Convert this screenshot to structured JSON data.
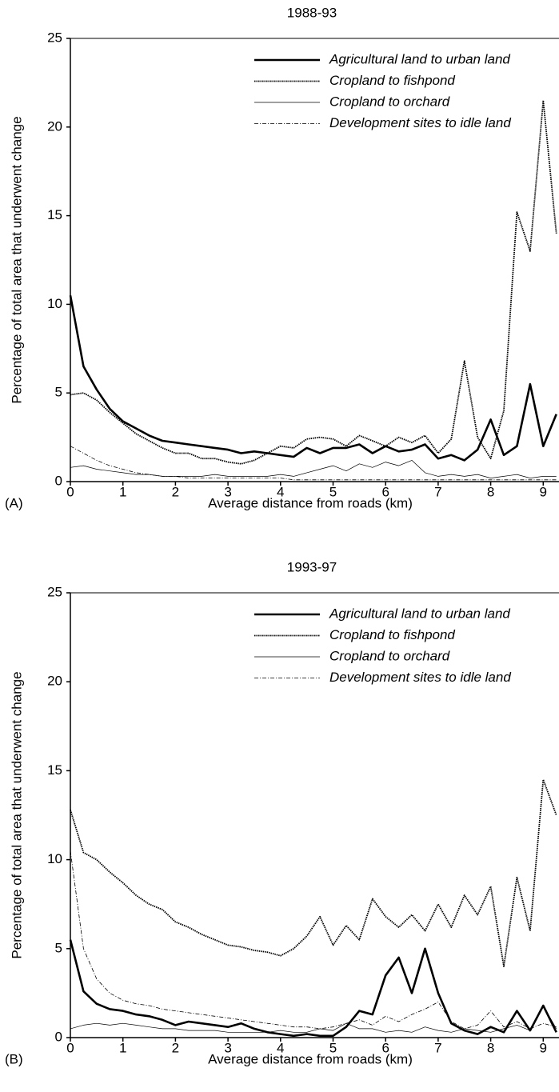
{
  "chart_data": [
    {
      "type": "line",
      "title": "1988-93",
      "panel_label": "(A)",
      "x_label": "Average distance from roads (km)",
      "y_label": "Percentage of total area that underwent change",
      "x": [
        0,
        0.25,
        0.5,
        0.75,
        1,
        1.25,
        1.5,
        1.75,
        2,
        2.25,
        2.5,
        2.75,
        3,
        3.25,
        3.5,
        3.75,
        4,
        4.25,
        4.5,
        4.75,
        5,
        5.25,
        5.5,
        5.75,
        6,
        6.25,
        6.5,
        6.75,
        7,
        7.25,
        7.5,
        7.75,
        8,
        8.25,
        8.5,
        8.75,
        9,
        9.25
      ],
      "xlim": [
        0,
        9.3
      ],
      "xticks": [
        0,
        1,
        2,
        3,
        4,
        5,
        6,
        7,
        8,
        9
      ],
      "ylim": [
        0,
        25
      ],
      "yticks": [
        0,
        5,
        10,
        15,
        20,
        25
      ],
      "series": [
        {
          "name": "Agricultural land to urban land",
          "color": "#000000",
          "dash": "solid",
          "width": 2.6,
          "values": [
            10.5,
            6.5,
            5.2,
            4.1,
            3.4,
            3.0,
            2.6,
            2.3,
            2.2,
            2.1,
            2.0,
            1.9,
            1.8,
            1.6,
            1.7,
            1.6,
            1.5,
            1.4,
            1.9,
            1.6,
            1.9,
            1.9,
            2.1,
            1.6,
            2.0,
            1.7,
            1.8,
            2.1,
            1.3,
            1.5,
            1.2,
            1.8,
            3.5,
            1.5,
            2.0,
            5.5,
            2.0,
            3.8
          ]
        },
        {
          "name": "Cropland to fishpond",
          "color": "#000000",
          "dash": "dotted",
          "width": 1.8,
          "values": [
            4.9,
            5.0,
            4.6,
            3.9,
            3.3,
            2.7,
            2.3,
            1.9,
            1.6,
            1.6,
            1.3,
            1.3,
            1.1,
            1.0,
            1.2,
            1.6,
            2.0,
            1.9,
            2.4,
            2.5,
            2.4,
            2.0,
            2.6,
            2.3,
            2.0,
            2.5,
            2.2,
            2.6,
            1.6,
            2.4,
            6.8,
            2.5,
            1.3,
            4.0,
            15.2,
            13.0,
            21.5,
            14.0
          ]
        },
        {
          "name": "Cropland to orchard",
          "color": "#000000",
          "dash": "solid",
          "width": 0.7,
          "values": [
            0.8,
            0.9,
            0.7,
            0.6,
            0.5,
            0.4,
            0.4,
            0.3,
            0.3,
            0.3,
            0.3,
            0.4,
            0.3,
            0.3,
            0.3,
            0.3,
            0.4,
            0.3,
            0.5,
            0.7,
            0.9,
            0.6,
            1.0,
            0.8,
            1.1,
            0.9,
            1.2,
            0.5,
            0.3,
            0.4,
            0.3,
            0.4,
            0.2,
            0.3,
            0.4,
            0.2,
            0.3,
            0.3
          ]
        },
        {
          "name": "Development sites to idle land",
          "color": "#000000",
          "dash": "dashdot",
          "width": 0.8,
          "values": [
            2.0,
            1.6,
            1.2,
            0.9,
            0.7,
            0.5,
            0.4,
            0.3,
            0.3,
            0.2,
            0.2,
            0.2,
            0.2,
            0.2,
            0.2,
            0.2,
            0.2,
            0.1,
            0.1,
            0.1,
            0.1,
            0.1,
            0.1,
            0.1,
            0.1,
            0.1,
            0.1,
            0.1,
            0.1,
            0.1,
            0.1,
            0.1,
            0.1,
            0.1,
            0.1,
            0.1,
            0.1,
            0.1
          ]
        }
      ]
    },
    {
      "type": "line",
      "title": "1993-97",
      "panel_label": "(B)",
      "x_label": "Average distance from roads (km)",
      "y_label": "Percentage of total area that underwent change",
      "x": [
        0,
        0.25,
        0.5,
        0.75,
        1,
        1.25,
        1.5,
        1.75,
        2,
        2.25,
        2.5,
        2.75,
        3,
        3.25,
        3.5,
        3.75,
        4,
        4.25,
        4.5,
        4.75,
        5,
        5.25,
        5.5,
        5.75,
        6,
        6.25,
        6.5,
        6.75,
        7,
        7.25,
        7.5,
        7.75,
        8,
        8.25,
        8.5,
        8.75,
        9,
        9.25
      ],
      "xlim": [
        0,
        9.3
      ],
      "xticks": [
        0,
        1,
        2,
        3,
        4,
        5,
        6,
        7,
        8,
        9
      ],
      "ylim": [
        0,
        25
      ],
      "yticks": [
        0,
        5,
        10,
        15,
        20,
        25
      ],
      "series": [
        {
          "name": "Agricultural land to urban land",
          "color": "#000000",
          "dash": "solid",
          "width": 2.6,
          "values": [
            5.5,
            2.6,
            1.9,
            1.6,
            1.5,
            1.3,
            1.2,
            1.0,
            0.7,
            0.9,
            0.8,
            0.7,
            0.6,
            0.8,
            0.5,
            0.3,
            0.2,
            0.1,
            0.2,
            0.1,
            0.1,
            0.6,
            1.5,
            1.3,
            3.5,
            4.5,
            2.5,
            5.0,
            2.5,
            0.8,
            0.4,
            0.2,
            0.6,
            0.3,
            1.5,
            0.4,
            1.8,
            0.3
          ]
        },
        {
          "name": "Cropland to fishpond",
          "color": "#000000",
          "dash": "dotted",
          "width": 1.8,
          "values": [
            12.8,
            10.4,
            10.0,
            9.3,
            8.7,
            8.0,
            7.5,
            7.2,
            6.5,
            6.2,
            5.8,
            5.5,
            5.2,
            5.1,
            4.9,
            4.8,
            4.6,
            5.0,
            5.7,
            6.8,
            5.2,
            6.3,
            5.5,
            7.8,
            6.8,
            6.2,
            6.9,
            6.0,
            7.5,
            6.2,
            8.0,
            6.9,
            8.5,
            4.0,
            9.0,
            6.0,
            14.5,
            12.5
          ]
        },
        {
          "name": "Cropland to orchard",
          "color": "#000000",
          "dash": "solid",
          "width": 0.7,
          "values": [
            0.5,
            0.7,
            0.8,
            0.7,
            0.8,
            0.7,
            0.6,
            0.5,
            0.5,
            0.4,
            0.4,
            0.4,
            0.3,
            0.3,
            0.3,
            0.3,
            0.4,
            0.3,
            0.3,
            0.5,
            0.4,
            0.8,
            0.5,
            0.5,
            0.3,
            0.4,
            0.3,
            0.6,
            0.4,
            0.3,
            0.5,
            0.4,
            0.3,
            0.5,
            0.7,
            0.4,
            1.8,
            0.5
          ]
        },
        {
          "name": "Development sites to idle land",
          "color": "#000000",
          "dash": "dashdot",
          "width": 0.8,
          "values": [
            10.5,
            5.0,
            3.3,
            2.5,
            2.1,
            1.9,
            1.8,
            1.6,
            1.5,
            1.4,
            1.3,
            1.2,
            1.1,
            1.0,
            0.9,
            0.8,
            0.7,
            0.6,
            0.6,
            0.5,
            0.6,
            0.8,
            1.0,
            0.7,
            1.2,
            0.9,
            1.3,
            1.6,
            2.0,
            0.9,
            0.5,
            0.7,
            1.5,
            0.6,
            0.9,
            0.5,
            0.8,
            0.6
          ]
        }
      ]
    }
  ]
}
